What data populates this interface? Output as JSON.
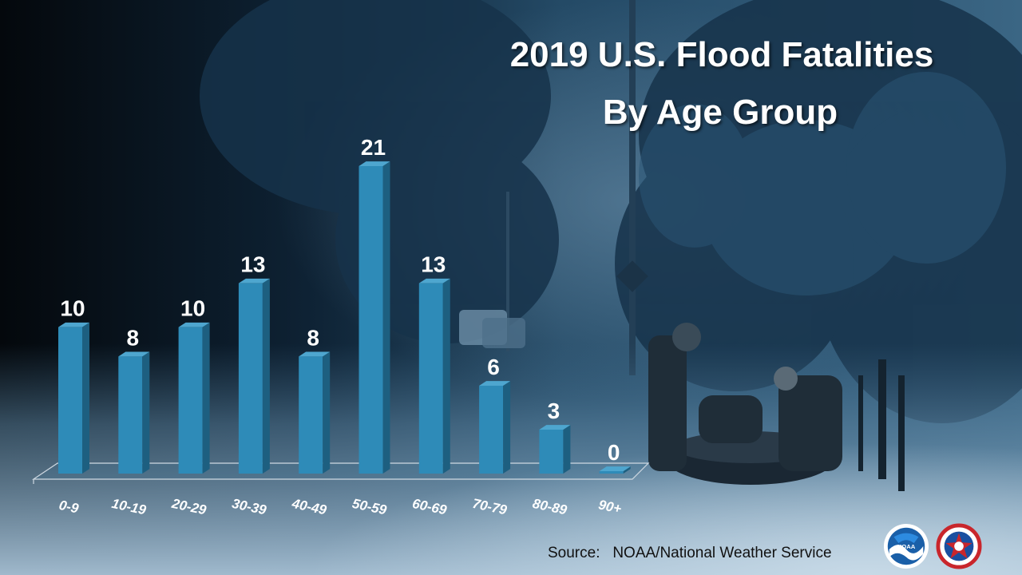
{
  "chart_data": {
    "type": "bar",
    "title": "2019 U.S. Flood Fatalities",
    "subtitle": "By Age Group",
    "categories": [
      "0-9",
      "10-19",
      "20-29",
      "30-39",
      "40-49",
      "50-59",
      "60-69",
      "70-79",
      "80-89",
      "90+"
    ],
    "values": [
      10,
      8,
      10,
      13,
      8,
      21,
      13,
      6,
      3,
      0
    ],
    "data_labels": [
      "10",
      "8",
      "10",
      "13",
      "8",
      "21",
      "13",
      "6",
      "3",
      "0"
    ],
    "xlabel": "",
    "ylabel": "",
    "ylim": [
      0,
      21
    ],
    "grid": false,
    "legend": "none",
    "bar_color": "#2e8bb8",
    "bar_side_color": "#1d5f80",
    "bar_top_color": "#4ea6cf"
  },
  "source": "Source:   NOAA/National Weather Service",
  "logos": [
    {
      "name": "noaa-logo",
      "text": "NOAA"
    },
    {
      "name": "nws-logo",
      "text": "NATIONAL WEATHER SERVICE"
    }
  ],
  "colors": {
    "text": "#ffffff",
    "background_dark": "#0b1826",
    "background_mid": "#1f3e58",
    "background_light": "#6f93ae"
  }
}
